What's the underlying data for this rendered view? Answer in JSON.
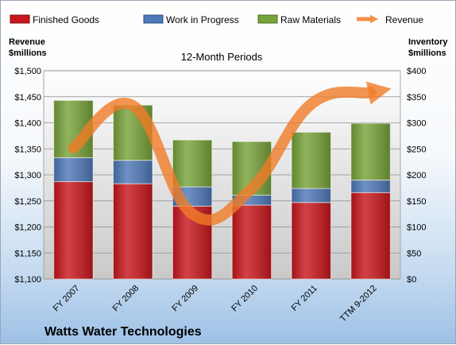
{
  "chart_data": {
    "type": "bar",
    "stacked": true,
    "subtitle": "12-Month Periods",
    "company": "Watts Water Technologies",
    "left_axis_label": [
      "Revenue",
      "$millions"
    ],
    "right_axis_label": [
      "Inventory",
      "$millions"
    ],
    "categories": [
      "FY 2007",
      "FY 2008",
      "FY 2009",
      "FY 2010",
      "FY 2011",
      "TTM 9-2012"
    ],
    "left_ylim": [
      1100,
      1500
    ],
    "left_ticks": [
      "$1,100",
      "$1,150",
      "$1,200",
      "$1,250",
      "$1,300",
      "$1,350",
      "$1,400",
      "$1,450",
      "$1,500"
    ],
    "right_ylim": [
      0,
      400
    ],
    "right_ticks": [
      "$0",
      "$50",
      "$100",
      "$150",
      "$200",
      "$250",
      "$300",
      "$350",
      "$400"
    ],
    "grid": true,
    "legend_position": "top",
    "series": [
      {
        "name": "Finished Goods",
        "axis": "right",
        "color": "#c8171c",
        "values": [
          187,
          183,
          140,
          142,
          147,
          166
        ]
      },
      {
        "name": "Work in Progress",
        "axis": "right",
        "color": "#4f79b8",
        "values": [
          46,
          45,
          37,
          19,
          27,
          24
        ]
      },
      {
        "name": "Raw Materials",
        "axis": "right",
        "color": "#78a33a",
        "values": [
          110,
          106,
          90,
          103,
          108,
          109
        ]
      },
      {
        "name": "Revenue",
        "axis": "left",
        "type": "line",
        "color": "#f07c28",
        "values": [
          1352,
          1433,
          1225,
          1274,
          1436,
          1458
        ]
      }
    ]
  }
}
